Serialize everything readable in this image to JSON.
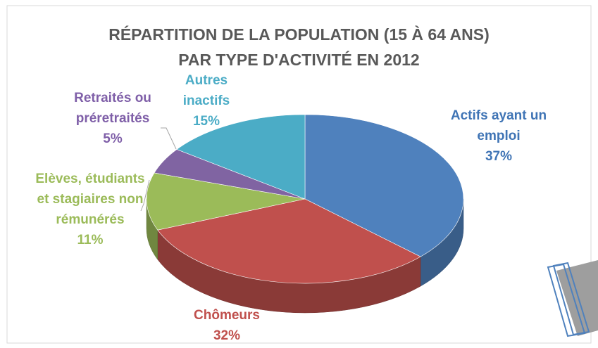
{
  "chart_data": {
    "type": "pie3d",
    "title": [
      "RÉPARTITION DE LA POPULATION (15 À 64 ANS)",
      "PAR TYPE D'ACTIVITÉ EN 2012"
    ],
    "categories": [
      "Actifs ayant un emploi",
      "Chômeurs",
      "Elèves, étudiants et stagiaires non rémunérés",
      "Retraités ou préretraités",
      "Autres inactifs"
    ],
    "values": [
      37,
      32,
      11,
      5,
      15
    ],
    "value_labels": [
      "37%",
      "32%",
      "11%",
      "5%",
      "15%"
    ],
    "colors": [
      "#4f81bd",
      "#c0504d",
      "#9bbb59",
      "#8064a2",
      "#4bacc6"
    ]
  }
}
